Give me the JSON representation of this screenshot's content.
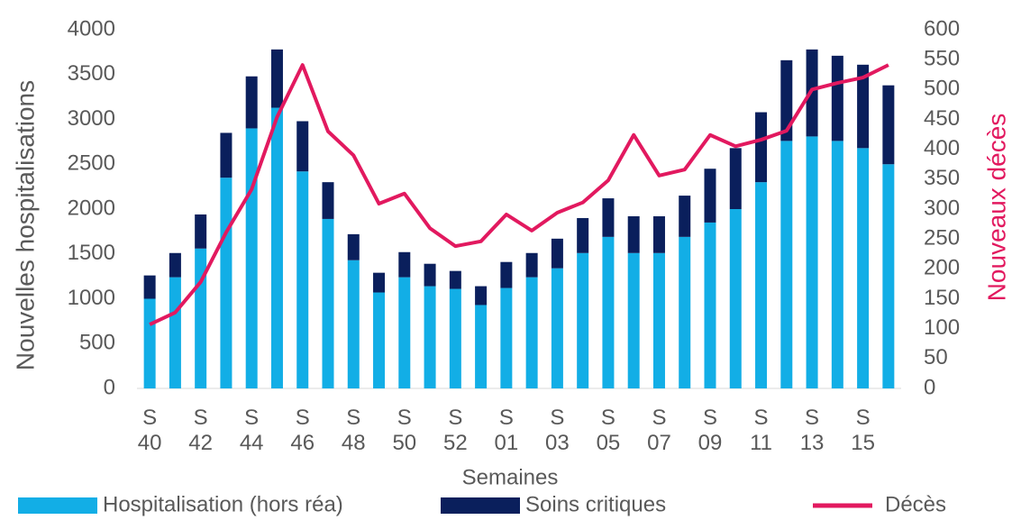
{
  "chart_data": {
    "type": "bar_line",
    "x_label": "Semaines",
    "y_label": "Nouvelles hospitalisations",
    "y2_label": "Nouveaux décès",
    "categories": [
      "S\n40",
      null,
      "S\n42",
      null,
      "S\n44",
      null,
      "S\n46",
      null,
      "S\n48",
      null,
      "S\n50",
      null,
      "S\n52",
      null,
      "S\n01",
      null,
      "S\n03",
      null,
      "S\n05",
      null,
      "S\n07",
      null,
      "S\n09",
      null,
      "S\n11",
      null,
      "S\n13",
      null,
      "S\n15",
      null
    ],
    "series": [
      {
        "name": "Hospitalisation (hors réa)",
        "type": "bar",
        "color": "#12aee6",
        "values": [
          1000,
          1240,
          1560,
          2350,
          2900,
          3130,
          2420,
          1890,
          1430,
          1070,
          1240,
          1140,
          1110,
          930,
          1120,
          1240,
          1340,
          1510,
          1690,
          1510,
          1510,
          1690,
          1850,
          2000,
          2300,
          2760,
          2810,
          2760,
          2680,
          2500
        ]
      },
      {
        "name": "Soins critiques",
        "type": "bar",
        "color": "#0a1f5c",
        "values": [
          260,
          270,
          380,
          500,
          580,
          650,
          560,
          410,
          290,
          220,
          280,
          250,
          200,
          210,
          290,
          270,
          330,
          390,
          430,
          410,
          410,
          460,
          600,
          680,
          780,
          900,
          970,
          950,
          930,
          880
        ]
      },
      {
        "name": "Décès",
        "type": "line",
        "axis": "y2",
        "color": "#e2195f",
        "values": [
          107,
          127,
          178,
          261,
          333,
          454,
          541,
          430,
          390,
          309,
          326,
          268,
          238,
          246,
          291,
          264,
          294,
          311,
          348,
          424,
          356,
          366,
          424,
          405,
          416,
          431,
          500,
          511,
          520,
          541
        ]
      }
    ],
    "stacked": true,
    "ylim": [
      0,
      4000
    ],
    "yticks": [
      0,
      500,
      1000,
      1500,
      2000,
      2500,
      3000,
      3500,
      4000
    ],
    "y2lim": [
      0,
      600
    ],
    "y2ticks": [
      0,
      50,
      100,
      150,
      200,
      250,
      300,
      350,
      400,
      450,
      500,
      550,
      600
    ],
    "grid": false,
    "legend": "bottom"
  }
}
